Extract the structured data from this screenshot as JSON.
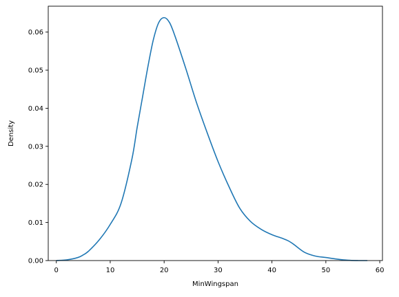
{
  "chart_data": {
    "type": "line",
    "title": "",
    "xlabel": "MinWingspan",
    "ylabel": "Density",
    "xlim": [
      -1.5,
      60.5
    ],
    "ylim": [
      0,
      0.0668
    ],
    "x_ticks": [
      0,
      10,
      20,
      30,
      40,
      50,
      60
    ],
    "y_ticks": [
      0.0,
      0.01,
      0.02,
      0.03,
      0.04,
      0.05,
      0.06
    ],
    "x_tick_labels": [
      "0",
      "10",
      "20",
      "30",
      "40",
      "50",
      "60"
    ],
    "y_tick_labels": [
      "0.00",
      "0.01",
      "0.02",
      "0.03",
      "0.04",
      "0.05",
      "0.06"
    ],
    "grid": false,
    "legend": null,
    "colors": {
      "line": "#1f77b4",
      "axes": "#000000",
      "background": "#ffffff"
    },
    "series": [
      {
        "x": [
          0,
          2,
          4,
          5,
          6,
          8,
          10,
          12,
          14,
          15,
          16,
          17,
          18,
          19,
          20,
          21,
          22,
          24,
          26,
          28,
          30,
          32,
          34,
          36,
          38,
          40,
          42,
          43,
          44,
          46,
          48,
          50,
          52,
          54,
          56,
          57.7
        ],
        "y": [
          0.0,
          0.0002,
          0.0008,
          0.0015,
          0.0025,
          0.0055,
          0.0095,
          0.015,
          0.0265,
          0.035,
          0.043,
          0.051,
          0.058,
          0.0625,
          0.0638,
          0.0625,
          0.059,
          0.0505,
          0.0415,
          0.0335,
          0.026,
          0.0195,
          0.0138,
          0.0103,
          0.0082,
          0.0068,
          0.0058,
          0.0052,
          0.0043,
          0.0022,
          0.0012,
          0.0008,
          0.0004,
          0.0001,
          0.0,
          0.0
        ]
      }
    ]
  }
}
